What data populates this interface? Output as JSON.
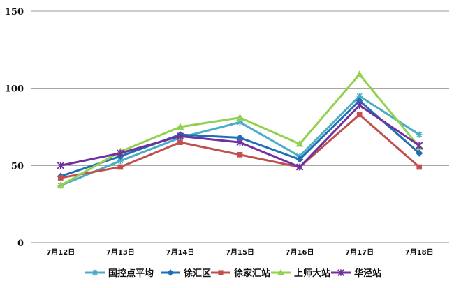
{
  "chart_data": {
    "type": "line",
    "title": "",
    "xlabel": "",
    "ylabel": "",
    "categories": [
      "7月12日",
      "7月13日",
      "7月14日",
      "7月15日",
      "7月16日",
      "7月17日",
      "7月18日"
    ],
    "ylim": [
      0,
      150
    ],
    "yticks": [
      0,
      50,
      100,
      150
    ],
    "grid": true,
    "legend_position": "bottom",
    "series": [
      {
        "name": "国控点平均",
        "color": "#4bacc6",
        "marker": "star",
        "values": [
          37,
          53,
          68,
          78,
          56,
          95,
          70
        ]
      },
      {
        "name": "徐汇区",
        "color": "#1f6fb5",
        "marker": "diamond",
        "values": [
          43,
          56,
          70,
          68,
          54,
          92,
          58
        ]
      },
      {
        "name": "徐家汇站",
        "color": "#c0504d",
        "marker": "square",
        "values": [
          42,
          49,
          65,
          57,
          49,
          83,
          49
        ]
      },
      {
        "name": "上师大站",
        "color": "#92d050",
        "marker": "triangle",
        "values": [
          37,
          59,
          75,
          81,
          64,
          109,
          62
        ]
      },
      {
        "name": "华泾站",
        "color": "#7030a0",
        "marker": "x-star",
        "values": [
          50,
          58,
          69,
          65,
          49,
          89,
          63
        ]
      }
    ]
  }
}
